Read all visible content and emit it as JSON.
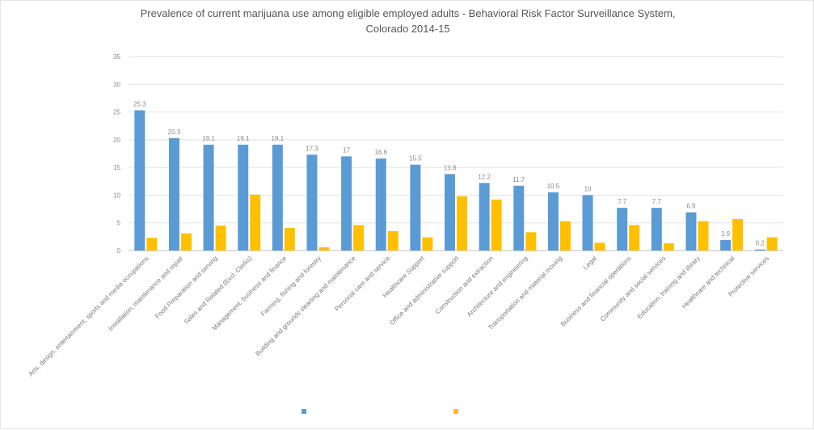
{
  "chart_data": {
    "type": "bar",
    "title_line1": "Prevalence of current marijuana use among eligible employed adults - Behavioral Risk Factor Surveillance System,",
    "title_line2": "Colorado 2014-15",
    "xlabel": "",
    "ylabel": "",
    "ylim": [
      0,
      35
    ],
    "yticks": [
      0,
      5,
      10,
      15,
      20,
      25,
      30,
      35
    ],
    "grid": true,
    "legend_position": "bottom",
    "categories": [
      "Arts, design, entertainment, sports and media occupations",
      "Installation, maintenance and repair",
      "Food Preparation and serving",
      "Sales and Related (Excl. Clerks)",
      "Management, business and finance",
      "Farming, fishing and forestry",
      "Building and grounds cleaning and maintenance",
      "Personal care and service",
      "Healthcare Support",
      "Office and administrative support",
      "Construction and extraction",
      "Architecture and engineering",
      "Transportation and material moving",
      "Legal",
      "Business and financial operations",
      "Community and social services",
      "Education, training and library",
      "Healthcare and technical",
      "Protective services"
    ],
    "series": [
      {
        "name": "",
        "color": "#5b9bd5",
        "values": [
          25.3,
          20.3,
          19.1,
          19.1,
          19.1,
          17.3,
          17,
          16.6,
          15.5,
          13.8,
          12.2,
          11.7,
          10.5,
          10,
          7.7,
          7.7,
          6.9,
          1.9,
          0.2
        ],
        "labels": [
          "25.3",
          "20.3",
          "19.1",
          "19.1",
          "19.1",
          "17.3",
          "17",
          "16.6",
          "15.5",
          "13.8",
          "12.2",
          "11.7",
          "10.5",
          "10",
          "7.7",
          "7.7",
          "6.9",
          "1.9",
          "0.2"
        ]
      },
      {
        "name": "",
        "color": "#ffc000",
        "values": [
          2.3,
          3.1,
          4.5,
          10.1,
          4.1,
          0.6,
          4.6,
          3.5,
          2.4,
          9.8,
          9.2,
          3.3,
          5.3,
          1.4,
          4.6,
          1.3,
          5.3,
          5.7,
          2.4
        ],
        "labels": []
      }
    ]
  }
}
